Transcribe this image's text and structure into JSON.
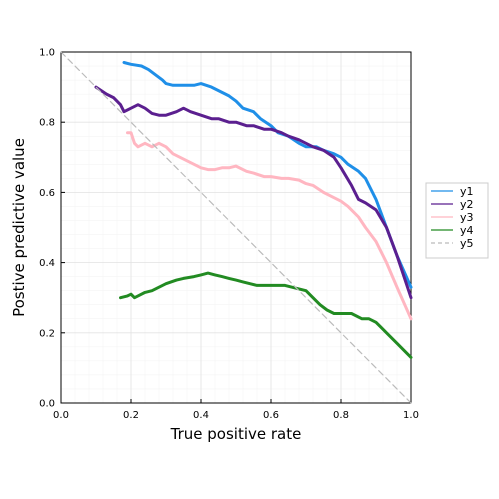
{
  "chart_data": {
    "type": "line",
    "title": "",
    "xlabel": "True positive rate",
    "ylabel": "Postive predictive value",
    "xlim": [
      0,
      1
    ],
    "ylim": [
      0,
      1
    ],
    "xticks": [
      0.0,
      0.2,
      0.4,
      0.6,
      0.8,
      1.0
    ],
    "yticks": [
      0.0,
      0.2,
      0.4,
      0.6,
      0.8,
      1.0
    ],
    "xtick_labels": [
      "0.0",
      "0.2",
      "0.4",
      "0.6",
      "0.8",
      "1.0"
    ],
    "ytick_labels": [
      "0.0",
      "0.2",
      "0.4",
      "0.6",
      "0.8",
      "1.0"
    ],
    "grid": true,
    "minor_grid": true,
    "legend": "right",
    "series": [
      {
        "name": "y1",
        "color": "#1f8fe8",
        "style": "solid",
        "x": [
          0.18,
          0.2,
          0.23,
          0.25,
          0.27,
          0.29,
          0.3,
          0.32,
          0.35,
          0.38,
          0.4,
          0.43,
          0.45,
          0.48,
          0.5,
          0.52,
          0.55,
          0.57,
          0.6,
          0.62,
          0.65,
          0.68,
          0.7,
          0.73,
          0.75,
          0.78,
          0.8,
          0.82,
          0.85,
          0.87,
          0.9,
          0.93,
          0.96,
          1.0
        ],
        "y": [
          0.97,
          0.965,
          0.96,
          0.95,
          0.935,
          0.92,
          0.91,
          0.905,
          0.905,
          0.905,
          0.91,
          0.9,
          0.89,
          0.875,
          0.86,
          0.84,
          0.83,
          0.81,
          0.79,
          0.77,
          0.76,
          0.74,
          0.73,
          0.73,
          0.72,
          0.71,
          0.7,
          0.68,
          0.66,
          0.64,
          0.58,
          0.5,
          0.42,
          0.33
        ]
      },
      {
        "name": "y2",
        "color": "#5b1f8f",
        "style": "solid",
        "x": [
          0.1,
          0.13,
          0.15,
          0.17,
          0.18,
          0.2,
          0.22,
          0.24,
          0.26,
          0.28,
          0.3,
          0.33,
          0.35,
          0.37,
          0.4,
          0.43,
          0.45,
          0.48,
          0.5,
          0.53,
          0.55,
          0.58,
          0.6,
          0.63,
          0.65,
          0.68,
          0.7,
          0.72,
          0.75,
          0.78,
          0.8,
          0.83,
          0.85,
          0.87,
          0.9,
          0.93,
          0.96,
          1.0
        ],
        "y": [
          0.9,
          0.88,
          0.87,
          0.85,
          0.83,
          0.84,
          0.85,
          0.84,
          0.825,
          0.82,
          0.82,
          0.83,
          0.84,
          0.83,
          0.82,
          0.81,
          0.81,
          0.8,
          0.8,
          0.79,
          0.79,
          0.78,
          0.78,
          0.77,
          0.76,
          0.75,
          0.74,
          0.73,
          0.72,
          0.7,
          0.67,
          0.62,
          0.58,
          0.57,
          0.55,
          0.5,
          0.42,
          0.3
        ]
      },
      {
        "name": "y3",
        "color": "#ffb6c1",
        "style": "solid",
        "x": [
          0.19,
          0.2,
          0.21,
          0.22,
          0.24,
          0.26,
          0.28,
          0.3,
          0.32,
          0.34,
          0.36,
          0.38,
          0.4,
          0.42,
          0.44,
          0.46,
          0.48,
          0.5,
          0.53,
          0.55,
          0.58,
          0.6,
          0.63,
          0.65,
          0.68,
          0.7,
          0.72,
          0.75,
          0.78,
          0.8,
          0.82,
          0.85,
          0.87,
          0.9,
          0.93,
          0.96,
          1.0
        ],
        "y": [
          0.77,
          0.77,
          0.74,
          0.73,
          0.74,
          0.73,
          0.74,
          0.73,
          0.71,
          0.7,
          0.69,
          0.68,
          0.67,
          0.665,
          0.665,
          0.67,
          0.67,
          0.675,
          0.66,
          0.655,
          0.645,
          0.645,
          0.64,
          0.64,
          0.635,
          0.625,
          0.62,
          0.6,
          0.585,
          0.575,
          0.56,
          0.53,
          0.5,
          0.46,
          0.4,
          0.33,
          0.24
        ]
      },
      {
        "name": "y4",
        "color": "#228b22",
        "style": "solid",
        "x": [
          0.17,
          0.19,
          0.2,
          0.21,
          0.22,
          0.24,
          0.26,
          0.28,
          0.3,
          0.33,
          0.35,
          0.38,
          0.4,
          0.42,
          0.44,
          0.46,
          0.48,
          0.5,
          0.52,
          0.54,
          0.56,
          0.58,
          0.6,
          0.62,
          0.64,
          0.66,
          0.68,
          0.7,
          0.72,
          0.74,
          0.76,
          0.78,
          0.8,
          0.83,
          0.86,
          0.88,
          0.9,
          0.93,
          0.96,
          1.0
        ],
        "y": [
          0.3,
          0.305,
          0.31,
          0.3,
          0.305,
          0.315,
          0.32,
          0.33,
          0.34,
          0.35,
          0.355,
          0.36,
          0.365,
          0.37,
          0.365,
          0.36,
          0.355,
          0.35,
          0.345,
          0.34,
          0.335,
          0.335,
          0.335,
          0.335,
          0.335,
          0.33,
          0.325,
          0.32,
          0.3,
          0.28,
          0.265,
          0.255,
          0.255,
          0.255,
          0.24,
          0.24,
          0.23,
          0.2,
          0.17,
          0.13
        ]
      },
      {
        "name": "y5",
        "color": "#bbbbbb",
        "style": "dashed",
        "x": [
          0,
          1
        ],
        "y": [
          1,
          0
        ]
      }
    ]
  }
}
